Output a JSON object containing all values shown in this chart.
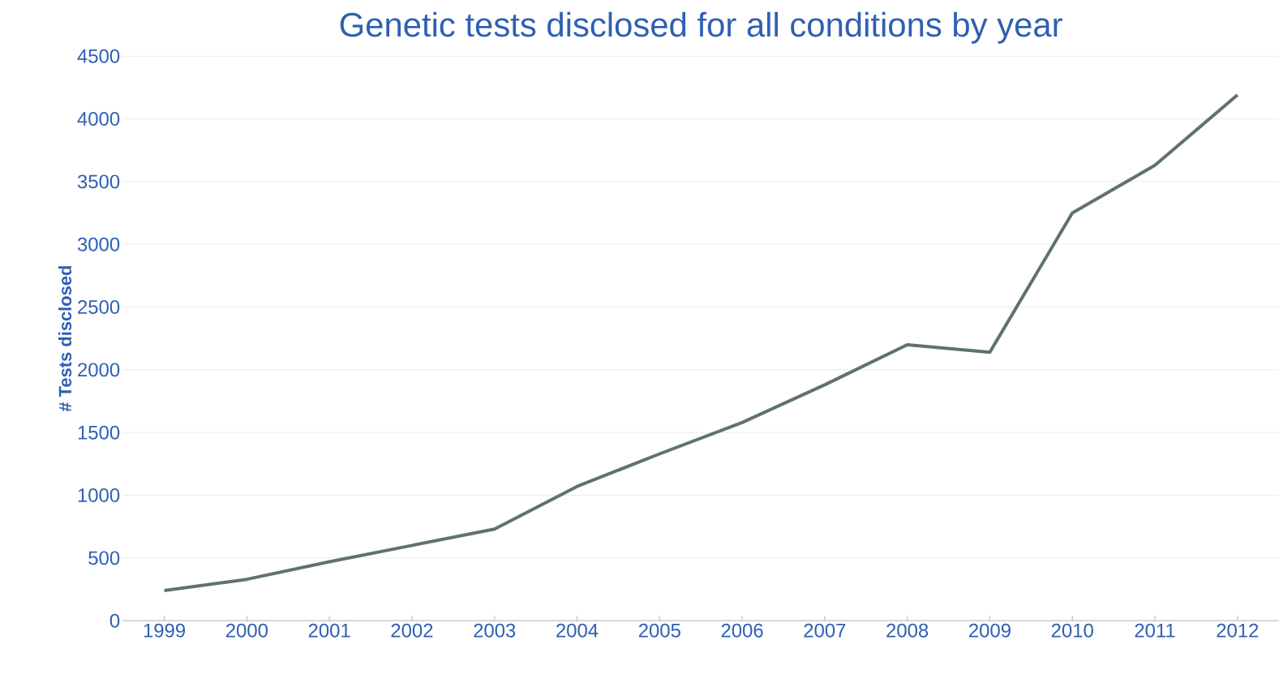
{
  "chart_data": {
    "type": "line",
    "title": "Genetic tests disclosed for all conditions by year",
    "ylabel": "# Tests disclosed",
    "categories": [
      "1999",
      "2000",
      "2001",
      "2002",
      "2003",
      "2004",
      "2005",
      "2006",
      "2007",
      "2008",
      "2009",
      "2010",
      "2011",
      "2012"
    ],
    "values": [
      240,
      330,
      470,
      600,
      730,
      1070,
      1330,
      1580,
      1880,
      2200,
      2140,
      3250,
      3630,
      4190
    ],
    "color": "#5f7464",
    "ylim": [
      0,
      4500
    ],
    "yticks": [
      0,
      500,
      1000,
      1500,
      2000,
      2500,
      3000,
      3500,
      4000,
      4500
    ],
    "grid": "y",
    "line_style": "solid"
  }
}
